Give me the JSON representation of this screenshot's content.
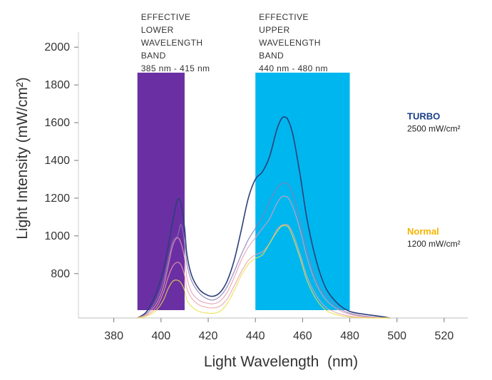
{
  "chart_data": {
    "type": "line",
    "xlabel": "Light Wavelength  (nm)",
    "ylabel": "Light Intensity (mW/cm²)",
    "xlim": [
      365,
      530
    ],
    "ylim": [
      565,
      2080
    ],
    "x_ticks": [
      380,
      400,
      420,
      440,
      460,
      480,
      500,
      520
    ],
    "y_ticks": [
      800,
      1000,
      1200,
      1400,
      1600,
      1800,
      2000
    ],
    "grid": false,
    "bands": [
      {
        "lines": [
          "EFFECTIVE",
          "LOWER",
          "WAVELENGTH",
          "BAND"
        ],
        "range_label": "385 nm - 415 nm",
        "x_start": 390,
        "x_end": 410,
        "y_top": 1865,
        "color": "#6a2fa3"
      },
      {
        "lines": [
          "EFFECTIVE",
          "UPPER",
          "WAVELENGTH",
          "BAND"
        ],
        "range_label": "440 nm - 480 nm",
        "x_start": 440,
        "x_end": 480,
        "y_top": 1865,
        "color": "#00b6ee"
      }
    ],
    "legend": [
      {
        "name": "TURBO",
        "value": "2500 mW/cm²",
        "color": "#1a3f8a",
        "anchor_y": 1610
      },
      {
        "name": "Normal",
        "value": "1200 mW/cm²",
        "color": "#f5b400",
        "anchor_y": 1000
      }
    ],
    "series": [
      {
        "color": "#2c3f7a",
        "x": [
          390,
          394,
          398,
          401,
          403,
          405,
          407,
          408.5,
          410,
          411,
          413,
          416,
          419,
          422,
          425,
          428,
          431,
          434,
          437,
          440,
          443,
          446,
          449,
          451,
          452.5,
          454,
          456,
          459,
          462,
          466,
          470,
          475,
          480,
          486,
          492,
          497
        ],
        "y": [
          565,
          600,
          700,
          820,
          940,
          1080,
          1190,
          1170,
          1040,
          900,
          790,
          720,
          690,
          680,
          700,
          760,
          870,
          1030,
          1200,
          1300,
          1340,
          1420,
          1560,
          1620,
          1630,
          1610,
          1530,
          1320,
          1080,
          860,
          720,
          640,
          600,
          585,
          575,
          565
        ]
      },
      {
        "color": "#8a7bb5",
        "x": [
          390,
          394,
          398,
          401,
          403,
          405,
          407,
          408.5,
          410,
          411,
          413,
          416,
          419,
          422,
          425,
          428,
          431,
          434,
          437,
          440,
          443,
          446,
          449,
          451,
          452.5,
          454,
          456,
          459,
          462,
          466,
          470,
          475,
          480,
          486,
          492,
          497
        ],
        "y": [
          565,
          590,
          660,
          760,
          870,
          970,
          1000,
          1060,
          960,
          850,
          760,
          700,
          670,
          660,
          680,
          730,
          810,
          900,
          980,
          1040,
          1100,
          1180,
          1250,
          1275,
          1280,
          1270,
          1220,
          1080,
          920,
          760,
          680,
          620,
          590,
          575,
          568,
          565
        ]
      },
      {
        "color": "#e59ab4",
        "x": [
          390,
          394,
          398,
          401,
          403,
          405,
          407,
          408.5,
          410,
          411,
          413,
          416,
          419,
          422,
          425,
          428,
          431,
          434,
          437,
          440,
          443,
          446,
          449,
          451,
          452.5,
          454,
          456,
          459,
          462,
          466,
          470,
          475,
          480,
          486,
          492,
          497
        ],
        "y": [
          565,
          585,
          640,
          730,
          840,
          950,
          990,
          960,
          880,
          780,
          700,
          660,
          645,
          640,
          655,
          700,
          780,
          870,
          940,
          990,
          1040,
          1090,
          1170,
          1205,
          1210,
          1200,
          1150,
          1030,
          880,
          740,
          660,
          610,
          585,
          572,
          567,
          565
        ]
      },
      {
        "color": "#f0a1a8",
        "x": [
          390,
          394,
          398,
          401,
          403,
          405,
          407,
          408.5,
          410,
          411,
          413,
          416,
          419,
          422,
          425,
          428,
          431,
          434,
          437,
          440,
          443,
          446,
          449,
          451,
          452.5,
          454,
          456,
          459,
          462,
          466,
          470,
          475,
          480,
          486,
          492,
          497
        ],
        "y": [
          565,
          580,
          620,
          700,
          780,
          840,
          860,
          845,
          790,
          720,
          670,
          635,
          622,
          618,
          628,
          665,
          735,
          810,
          870,
          900,
          915,
          960,
          1030,
          1055,
          1060,
          1055,
          1010,
          900,
          780,
          680,
          620,
          590,
          575,
          568,
          566,
          565
        ]
      },
      {
        "color": "#e8e14a",
        "x": [
          390,
          394,
          398,
          401,
          403,
          405,
          407,
          408.5,
          410,
          411,
          413,
          416,
          419,
          422,
          425,
          428,
          431,
          434,
          437,
          440,
          443,
          446,
          449,
          451,
          452.5,
          454,
          456,
          459,
          462,
          466,
          470,
          475,
          480,
          486,
          492,
          497
        ],
        "y": [
          565,
          575,
          605,
          660,
          720,
          760,
          765,
          750,
          710,
          660,
          625,
          600,
          592,
          590,
          600,
          640,
          710,
          790,
          850,
          880,
          900,
          960,
          1020,
          1050,
          1055,
          1045,
          990,
          880,
          760,
          660,
          605,
          580,
          570,
          566,
          565,
          565
        ]
      }
    ]
  }
}
